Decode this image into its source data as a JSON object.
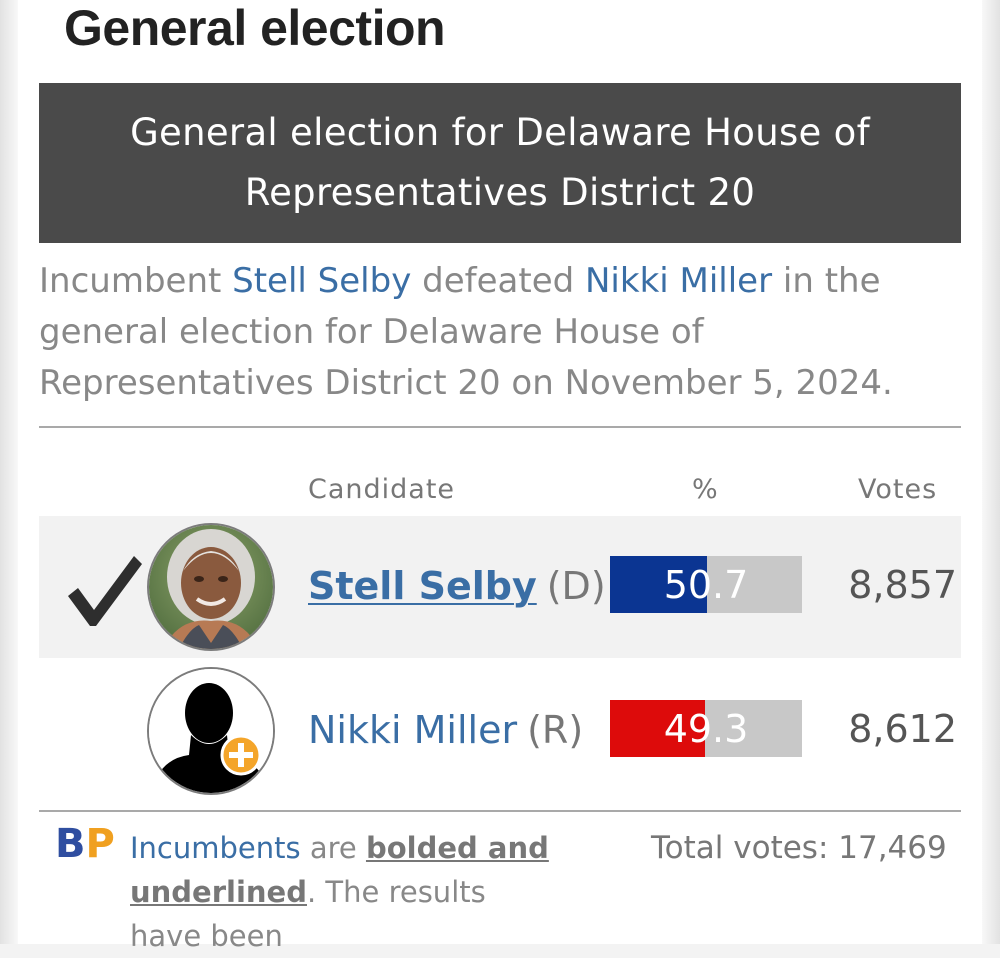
{
  "section": {
    "heading": "General election"
  },
  "race": {
    "title": "General election for Delaware House of Representatives District 20",
    "summary": {
      "prefix": "Incumbent ",
      "winner_link": "Stell Selby",
      "middle": " defeated ",
      "loser_link": "Nikki Miller",
      "suffix": " in the general election for Delaware House of Representatives District 20 on November 5, 2024."
    }
  },
  "table": {
    "headers": {
      "candidate": "Candidate",
      "percent": "%",
      "votes": "Votes"
    },
    "rows": [
      {
        "name": "Stell Selby",
        "party": "(D)",
        "percent": "50.7",
        "percent_value": 50.7,
        "votes": "8,857",
        "winner": true,
        "incumbent": true,
        "party_color": "#0b3592",
        "avatar": "candidate-photo"
      },
      {
        "name": "Nikki Miller",
        "party": "(R)",
        "percent": "49.3",
        "percent_value": 49.3,
        "votes": "8,612",
        "winner": false,
        "incumbent": false,
        "party_color": "#dd0b0b",
        "avatar": "placeholder-silhouette-icon"
      }
    ]
  },
  "footer": {
    "logo_b": "B",
    "logo_p": "P",
    "note_link": "Incumbents",
    "note_mid": " are ",
    "note_bold": "bolded and underlined",
    "note_end": ". The results have been",
    "total_label": "Total votes: ",
    "total_value": "17,469"
  },
  "colors": {
    "header_bg": "#4a4a4a",
    "link": "#3a6ea5",
    "democrat": "#0b3592",
    "republican": "#dd0b0b",
    "bar_bg": "#c8c8c8"
  },
  "icons": {
    "winner_check": "checkmark-icon",
    "add_photo": "plus-circle-icon"
  }
}
